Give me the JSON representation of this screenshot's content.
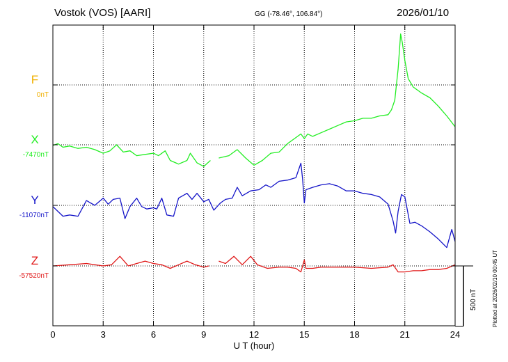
{
  "header": {
    "station": "Vostok (VOS)  [AARI]",
    "coords": "GG (-78.46°, 106.84°)",
    "date": "2026/01/10"
  },
  "side_note": "Plotted at 2026/02/10 00:45 UT",
  "chart_data": {
    "type": "line",
    "xlabel": "U T (hour)",
    "x_ticks": [
      "0",
      "3",
      "6",
      "9",
      "12",
      "15",
      "18",
      "21",
      "24"
    ],
    "xlim": [
      0,
      24
    ],
    "scale_bar_label": "500 nT",
    "scale_bar_nT": 500,
    "nT_per_division": 500,
    "colors": {
      "F": "#f0b000",
      "X": "#22ee22",
      "Y": "#1414c8",
      "Z": "#e01818"
    },
    "series": [
      {
        "name": "F",
        "baseline_label": "0nT",
        "baseline_nT": 0,
        "values": []
      },
      {
        "name": "X",
        "baseline_label": "-7470nT",
        "baseline_nT": -7470,
        "gaps": [
          [
            9.4,
            9.9
          ]
        ],
        "points": [
          [
            0,
            -7475
          ],
          [
            0.3,
            -7460
          ],
          [
            0.6,
            -7490
          ],
          [
            1,
            -7480
          ],
          [
            1.5,
            -7500
          ],
          [
            2,
            -7490
          ],
          [
            2.5,
            -7510
          ],
          [
            3,
            -7540
          ],
          [
            3.4,
            -7520
          ],
          [
            3.8,
            -7470
          ],
          [
            4.2,
            -7530
          ],
          [
            4.6,
            -7520
          ],
          [
            5,
            -7560
          ],
          [
            5.5,
            -7550
          ],
          [
            6,
            -7540
          ],
          [
            6.3,
            -7560
          ],
          [
            6.7,
            -7520
          ],
          [
            7,
            -7600
          ],
          [
            7.5,
            -7630
          ],
          [
            8,
            -7600
          ],
          [
            8.2,
            -7540
          ],
          [
            8.6,
            -7620
          ],
          [
            9,
            -7650
          ],
          [
            9.4,
            -7600
          ],
          [
            9.9,
            -7580
          ],
          [
            10.5,
            -7560
          ],
          [
            11,
            -7510
          ],
          [
            11.5,
            -7580
          ],
          [
            12,
            -7640
          ],
          [
            12.5,
            -7600
          ],
          [
            13,
            -7540
          ],
          [
            13.5,
            -7530
          ],
          [
            14,
            -7460
          ],
          [
            14.5,
            -7410
          ],
          [
            14.8,
            -7380
          ],
          [
            15,
            -7420
          ],
          [
            15.2,
            -7380
          ],
          [
            15.5,
            -7400
          ],
          [
            16,
            -7370
          ],
          [
            16.5,
            -7340
          ],
          [
            17,
            -7310
          ],
          [
            17.5,
            -7280
          ],
          [
            18,
            -7270
          ],
          [
            18.5,
            -7250
          ],
          [
            19,
            -7250
          ],
          [
            19.5,
            -7230
          ],
          [
            20,
            -7220
          ],
          [
            20.2,
            -7180
          ],
          [
            20.4,
            -7100
          ],
          [
            20.6,
            -6840
          ],
          [
            20.75,
            -6550
          ],
          [
            20.85,
            -6620
          ],
          [
            21,
            -6770
          ],
          [
            21.2,
            -6920
          ],
          [
            21.5,
            -6990
          ],
          [
            22,
            -7040
          ],
          [
            22.5,
            -7080
          ],
          [
            23,
            -7150
          ],
          [
            23.5,
            -7230
          ],
          [
            24,
            -7320
          ]
        ]
      },
      {
        "name": "Y",
        "baseline_label": "-11070nT",
        "baseline_nT": -11070,
        "points": [
          [
            0,
            -11080
          ],
          [
            0.3,
            -11120
          ],
          [
            0.6,
            -11160
          ],
          [
            1,
            -11150
          ],
          [
            1.5,
            -11160
          ],
          [
            2,
            -11030
          ],
          [
            2.5,
            -11070
          ],
          [
            3,
            -11010
          ],
          [
            3.3,
            -11060
          ],
          [
            3.6,
            -11020
          ],
          [
            4,
            -11010
          ],
          [
            4.3,
            -11180
          ],
          [
            4.6,
            -11080
          ],
          [
            5,
            -11010
          ],
          [
            5.3,
            -11080
          ],
          [
            5.6,
            -11100
          ],
          [
            6,
            -11090
          ],
          [
            6.2,
            -11100
          ],
          [
            6.5,
            -11010
          ],
          [
            6.8,
            -11150
          ],
          [
            7.2,
            -11160
          ],
          [
            7.5,
            -11010
          ],
          [
            8,
            -10970
          ],
          [
            8.3,
            -11020
          ],
          [
            8.6,
            -10970
          ],
          [
            9,
            -11040
          ],
          [
            9.3,
            -11020
          ],
          [
            9.6,
            -11110
          ],
          [
            10,
            -11050
          ],
          [
            10.3,
            -11020
          ],
          [
            10.7,
            -11010
          ],
          [
            11,
            -10920
          ],
          [
            11.3,
            -10990
          ],
          [
            11.8,
            -10950
          ],
          [
            12.3,
            -10940
          ],
          [
            12.7,
            -10900
          ],
          [
            13,
            -10920
          ],
          [
            13.5,
            -10870
          ],
          [
            14,
            -10860
          ],
          [
            14.5,
            -10840
          ],
          [
            14.8,
            -10720
          ],
          [
            14.9,
            -10850
          ],
          [
            15,
            -11050
          ],
          [
            15.1,
            -10940
          ],
          [
            15.5,
            -10920
          ],
          [
            16,
            -10900
          ],
          [
            16.5,
            -10890
          ],
          [
            17,
            -10910
          ],
          [
            17.5,
            -10950
          ],
          [
            18,
            -10950
          ],
          [
            18.5,
            -10970
          ],
          [
            19,
            -10980
          ],
          [
            19.5,
            -11000
          ],
          [
            20,
            -11060
          ],
          [
            20.3,
            -11200
          ],
          [
            20.45,
            -11300
          ],
          [
            20.6,
            -11120
          ],
          [
            20.8,
            -10980
          ],
          [
            21,
            -11000
          ],
          [
            21.3,
            -11220
          ],
          [
            21.6,
            -11210
          ],
          [
            22,
            -11240
          ],
          [
            22.5,
            -11290
          ],
          [
            23,
            -11350
          ],
          [
            23.5,
            -11420
          ],
          [
            23.8,
            -11270
          ],
          [
            24,
            -11370
          ]
        ]
      },
      {
        "name": "Z",
        "baseline_label": "-57520nT",
        "baseline_nT": -57520,
        "gaps": [
          [
            9.4,
            9.9
          ]
        ],
        "points": [
          [
            0,
            -57520
          ],
          [
            1,
            -57510
          ],
          [
            2,
            -57500
          ],
          [
            3,
            -57520
          ],
          [
            3.5,
            -57510
          ],
          [
            4,
            -57440
          ],
          [
            4.5,
            -57520
          ],
          [
            5,
            -57500
          ],
          [
            5.5,
            -57480
          ],
          [
            6,
            -57500
          ],
          [
            6.5,
            -57510
          ],
          [
            7,
            -57540
          ],
          [
            7.5,
            -57510
          ],
          [
            8,
            -57480
          ],
          [
            8.5,
            -57510
          ],
          [
            9,
            -57530
          ],
          [
            9.3,
            -57520
          ],
          [
            9.9,
            -57480
          ],
          [
            10.3,
            -57500
          ],
          [
            10.8,
            -57440
          ],
          [
            11.3,
            -57510
          ],
          [
            11.8,
            -57440
          ],
          [
            12.2,
            -57510
          ],
          [
            12.8,
            -57540
          ],
          [
            13.5,
            -57530
          ],
          [
            14,
            -57530
          ],
          [
            14.5,
            -57540
          ],
          [
            14.8,
            -57570
          ],
          [
            15,
            -57470
          ],
          [
            15.1,
            -57540
          ],
          [
            15.5,
            -57540
          ],
          [
            16,
            -57530
          ],
          [
            17,
            -57530
          ],
          [
            18,
            -57530
          ],
          [
            19,
            -57540
          ],
          [
            20,
            -57530
          ],
          [
            20.3,
            -57510
          ],
          [
            20.6,
            -57570
          ],
          [
            21,
            -57570
          ],
          [
            21.5,
            -57560
          ],
          [
            22,
            -57560
          ],
          [
            22.5,
            -57550
          ],
          [
            23,
            -57550
          ],
          [
            23.5,
            -57540
          ],
          [
            24,
            -57510
          ]
        ]
      }
    ]
  }
}
